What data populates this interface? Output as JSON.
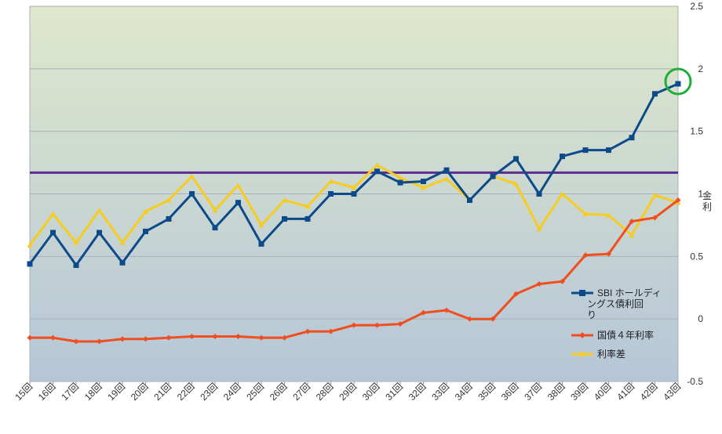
{
  "chart_data": {
    "type": "line",
    "categories": [
      "15回",
      "16回",
      "17回",
      "18回",
      "19回",
      "20回",
      "21回",
      "22回",
      "23回",
      "24回",
      "25回",
      "26回",
      "27回",
      "28回",
      "29回",
      "30回",
      "31回",
      "32回",
      "33回",
      "34回",
      "35回",
      "36回",
      "37回",
      "38回",
      "39回",
      "40回",
      "41回",
      "42回",
      "43回"
    ],
    "ylim": [
      -0.5,
      2.5
    ],
    "yticks": [
      -0.5,
      0,
      0.5,
      1,
      1.5,
      2,
      2.5
    ],
    "ylabel": "金利",
    "reference_line": 1.17,
    "grid": true,
    "legend_position": "right",
    "series": [
      {
        "name": "SBI ホールディングス債利回り",
        "color": "#0d4a8a",
        "marker": "square",
        "values": [
          0.44,
          0.69,
          0.43,
          0.69,
          0.45,
          0.7,
          0.8,
          1.0,
          0.73,
          0.93,
          0.6,
          0.8,
          0.8,
          1.0,
          1.0,
          1.18,
          1.09,
          1.1,
          1.19,
          0.95,
          1.14,
          1.28,
          1.0,
          1.3,
          1.35,
          1.35,
          1.45,
          1.8,
          1.88
        ]
      },
      {
        "name": "国債４年利率",
        "color": "#f04e1e",
        "marker": "diamond",
        "values": [
          -0.15,
          -0.15,
          -0.18,
          -0.18,
          -0.16,
          -0.16,
          -0.15,
          -0.14,
          -0.14,
          -0.14,
          -0.15,
          -0.15,
          -0.1,
          -0.1,
          -0.05,
          -0.05,
          -0.04,
          0.05,
          0.07,
          0.0,
          0.0,
          0.2,
          0.28,
          0.3,
          0.51,
          0.52,
          0.78,
          0.81,
          0.95
        ]
      },
      {
        "name": "利率差",
        "color": "#f7cc22",
        "marker": "triangle",
        "values": [
          0.59,
          0.84,
          0.61,
          0.87,
          0.61,
          0.86,
          0.95,
          1.14,
          0.87,
          1.07,
          0.75,
          0.95,
          0.9,
          1.1,
          1.05,
          1.23,
          1.13,
          1.05,
          1.12,
          0.95,
          1.14,
          1.08,
          0.72,
          1.0,
          0.84,
          0.83,
          0.67,
          0.99,
          0.93
        ]
      }
    ]
  },
  "legend": {
    "item1_line1": "SBI ホールディ",
    "item1_line2": "ングス債利回",
    "item1_line3": "り",
    "item2": "国債４年利率",
    "item3": "利率差"
  },
  "axis_title_chars": [
    "金",
    "利"
  ]
}
